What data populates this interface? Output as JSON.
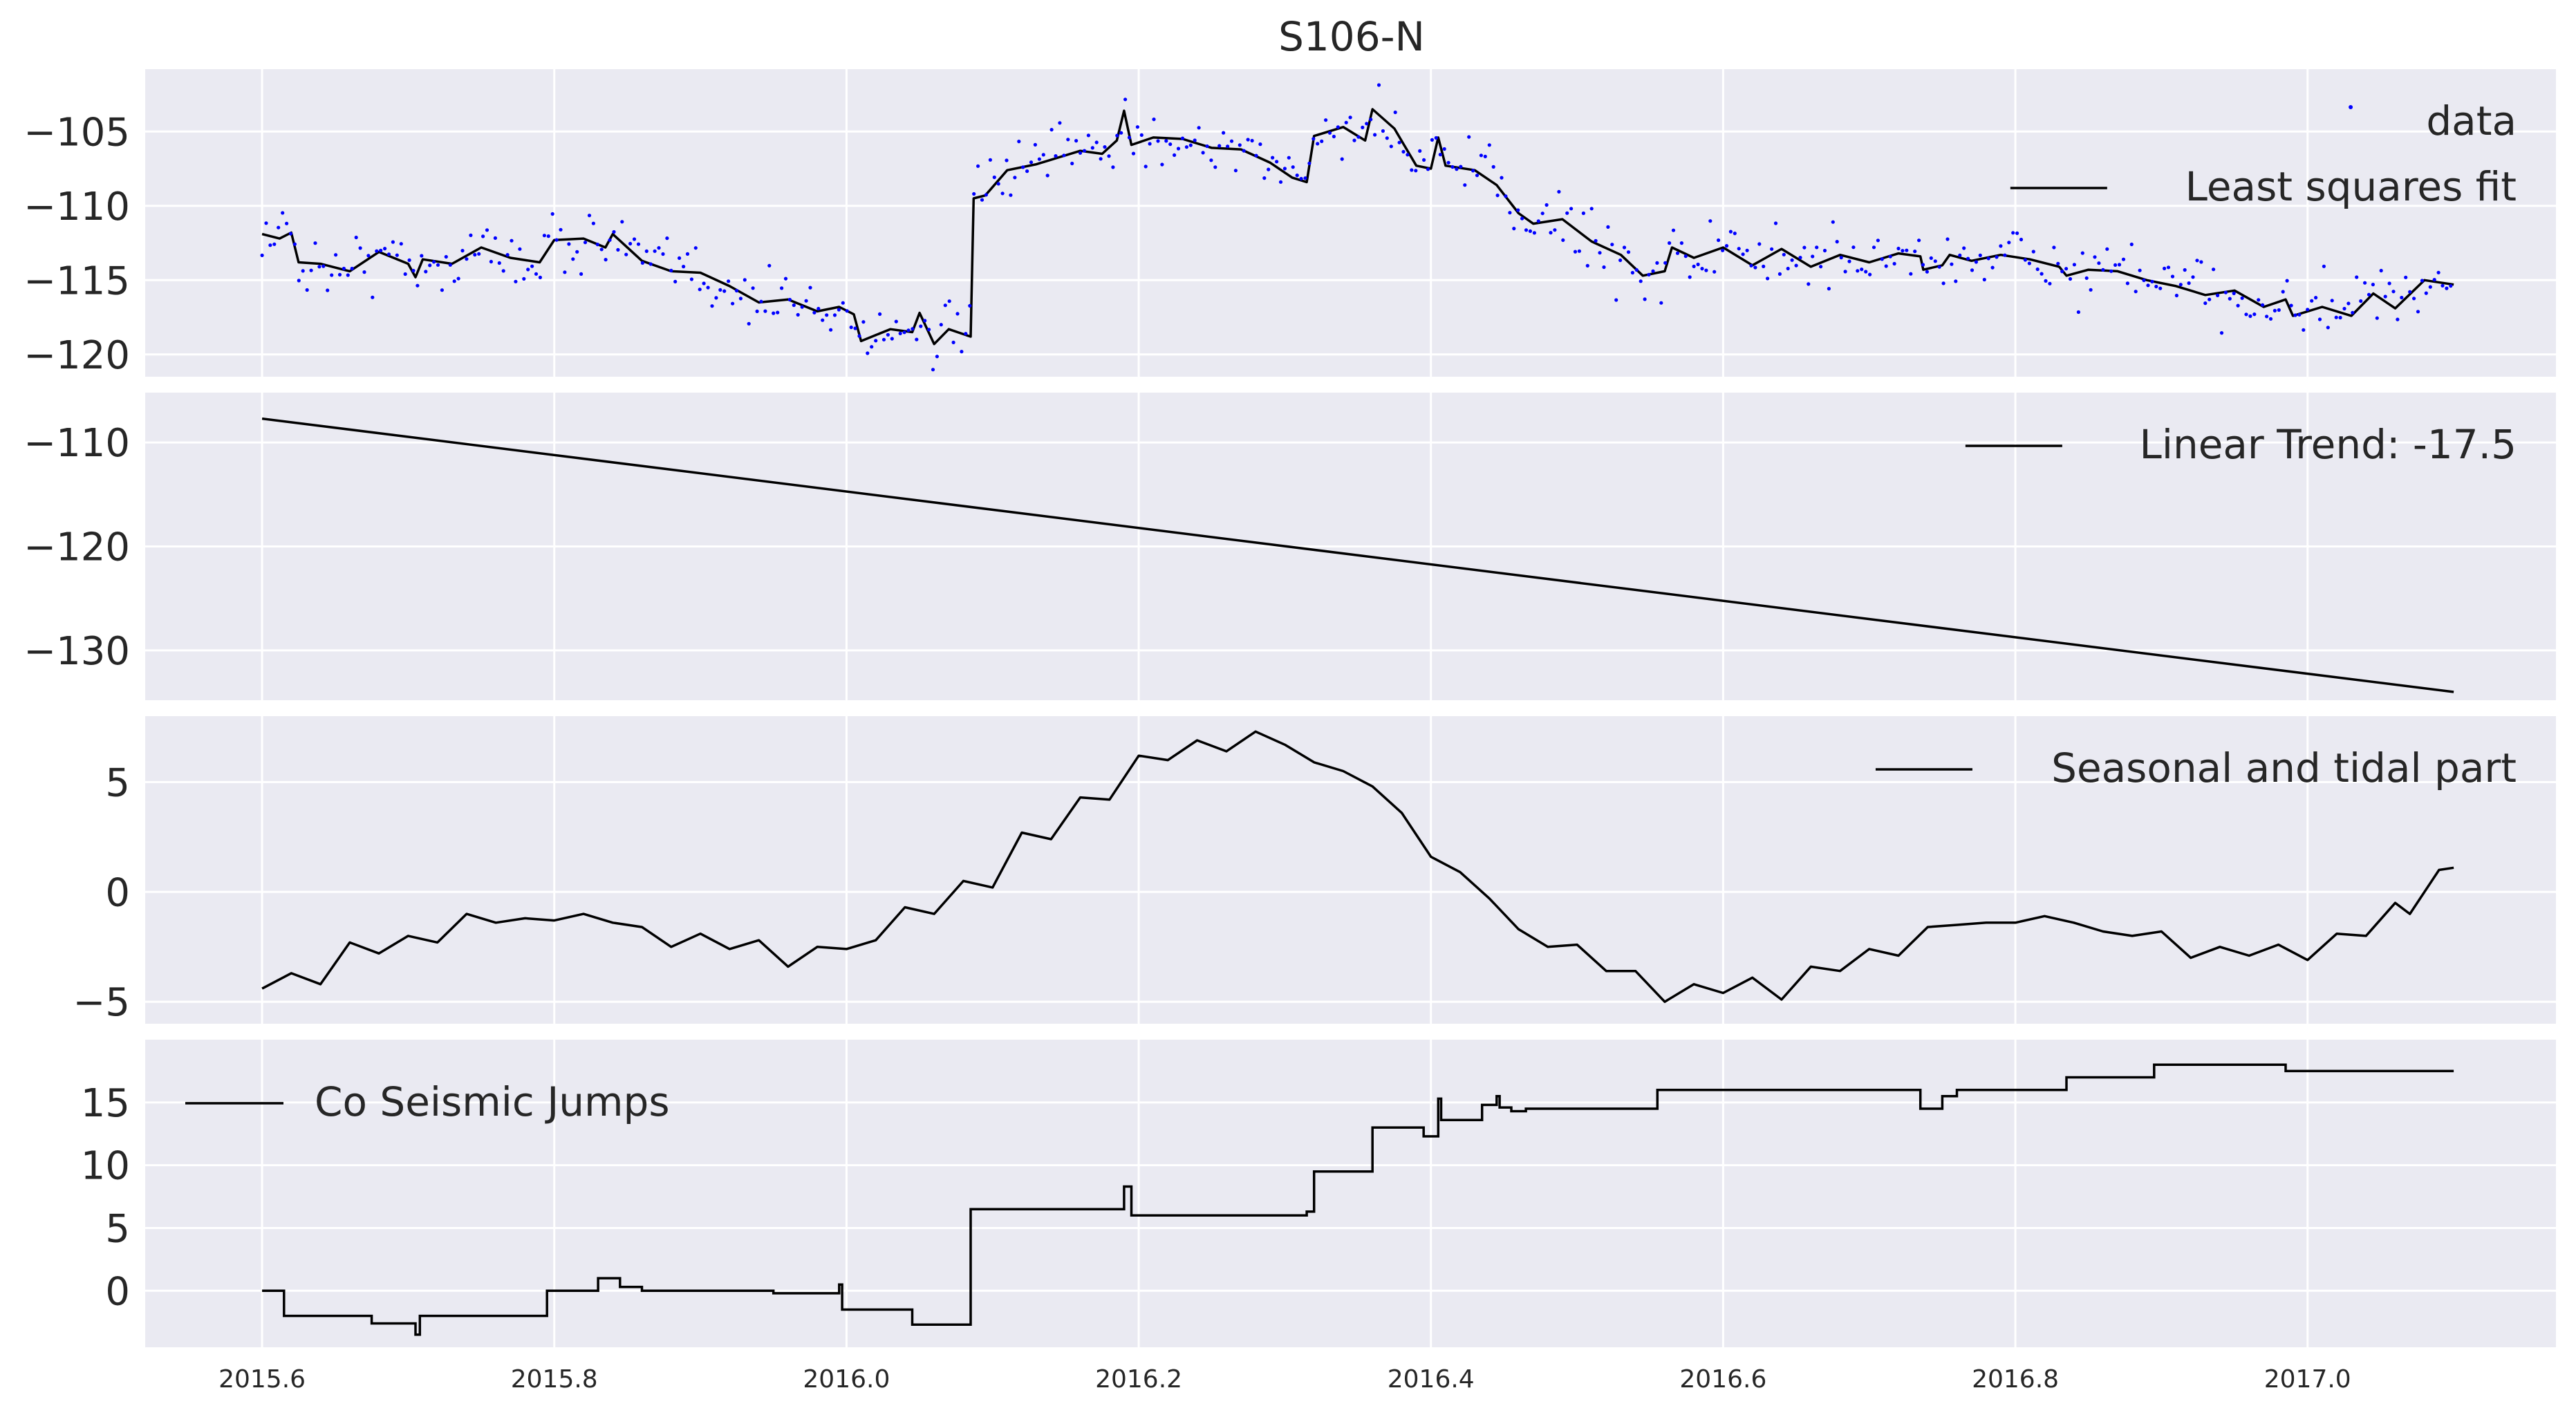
{
  "figure": {
    "title": "S106-N"
  },
  "x_axis": {
    "ticks": [
      2015.6,
      2015.8,
      2016.0,
      2016.2,
      2016.4,
      2016.6,
      2016.8,
      2017.0
    ],
    "range": [
      2015.52,
      2017.17
    ]
  },
  "chart_data": [
    {
      "type": "scatter+line",
      "name": "panel-1",
      "ylim": [
        -121.5,
        -100.8
      ],
      "yticks": [
        -120,
        -115,
        -110,
        -105
      ],
      "legend": {
        "placement": "top-right",
        "entries": [
          {
            "label": "data",
            "kind": "marker",
            "color": "#0000ff"
          },
          {
            "label": "Least squares fit",
            "kind": "line",
            "color": "#000000"
          }
        ]
      },
      "series": [
        {
          "name": "Least squares fit",
          "color": "#000000",
          "points": [
            [
              2015.6,
              -111.9
            ],
            [
              2015.612,
              -112.2
            ],
            [
              2015.62,
              -111.8
            ],
            [
              2015.625,
              -113.8
            ],
            [
              2015.64,
              -113.9
            ],
            [
              2015.66,
              -114.4
            ],
            [
              2015.68,
              -113.1
            ],
            [
              2015.7,
              -113.9
            ],
            [
              2015.705,
              -114.8
            ],
            [
              2015.71,
              -113.6
            ],
            [
              2015.73,
              -113.9
            ],
            [
              2015.75,
              -112.8
            ],
            [
              2015.77,
              -113.5
            ],
            [
              2015.79,
              -113.8
            ],
            [
              2015.8,
              -112.3
            ],
            [
              2015.82,
              -112.2
            ],
            [
              2015.835,
              -112.8
            ],
            [
              2015.84,
              -111.9
            ],
            [
              2015.86,
              -113.7
            ],
            [
              2015.88,
              -114.4
            ],
            [
              2015.9,
              -114.5
            ],
            [
              2015.92,
              -115.4
            ],
            [
              2015.94,
              -116.5
            ],
            [
              2015.96,
              -116.3
            ],
            [
              2015.98,
              -117.1
            ],
            [
              2015.995,
              -116.8
            ],
            [
              2016.005,
              -117.3
            ],
            [
              2016.01,
              -119.1
            ],
            [
              2016.03,
              -118.3
            ],
            [
              2016.045,
              -118.5
            ],
            [
              2016.05,
              -117.2
            ],
            [
              2016.06,
              -119.3
            ],
            [
              2016.07,
              -118.3
            ],
            [
              2016.085,
              -118.8
            ],
            [
              2016.087,
              -109.5
            ],
            [
              2016.095,
              -109.3
            ],
            [
              2016.11,
              -107.6
            ],
            [
              2016.13,
              -107.2
            ],
            [
              2016.16,
              -106.3
            ],
            [
              2016.175,
              -106.5
            ],
            [
              2016.185,
              -105.6
            ],
            [
              2016.19,
              -103.6
            ],
            [
              2016.195,
              -105.9
            ],
            [
              2016.21,
              -105.4
            ],
            [
              2016.23,
              -105.5
            ],
            [
              2016.25,
              -106.1
            ],
            [
              2016.27,
              -106.2
            ],
            [
              2016.29,
              -107.1
            ],
            [
              2016.305,
              -108.1
            ],
            [
              2016.315,
              -108.4
            ],
            [
              2016.32,
              -105.3
            ],
            [
              2016.34,
              -104.7
            ],
            [
              2016.355,
              -105.6
            ],
            [
              2016.36,
              -103.5
            ],
            [
              2016.375,
              -104.8
            ],
            [
              2016.39,
              -107.3
            ],
            [
              2016.4,
              -107.5
            ],
            [
              2016.405,
              -105.4
            ],
            [
              2016.41,
              -107.3
            ],
            [
              2016.43,
              -107.6
            ],
            [
              2016.445,
              -108.6
            ],
            [
              2016.46,
              -110.5
            ],
            [
              2016.47,
              -111.2
            ],
            [
              2016.49,
              -110.9
            ],
            [
              2016.51,
              -112.4
            ],
            [
              2016.53,
              -113.3
            ],
            [
              2016.545,
              -114.7
            ],
            [
              2016.56,
              -114.4
            ],
            [
              2016.565,
              -112.8
            ],
            [
              2016.58,
              -113.5
            ],
            [
              2016.6,
              -112.8
            ],
            [
              2016.62,
              -114.0
            ],
            [
              2016.64,
              -112.9
            ],
            [
              2016.66,
              -114.1
            ],
            [
              2016.68,
              -113.3
            ],
            [
              2016.7,
              -113.8
            ],
            [
              2016.72,
              -113.2
            ],
            [
              2016.735,
              -113.4
            ],
            [
              2016.737,
              -114.3
            ],
            [
              2016.75,
              -114.0
            ],
            [
              2016.755,
              -113.3
            ],
            [
              2016.77,
              -113.7
            ],
            [
              2016.79,
              -113.3
            ],
            [
              2016.81,
              -113.6
            ],
            [
              2016.83,
              -114.1
            ],
            [
              2016.835,
              -114.7
            ],
            [
              2016.85,
              -114.3
            ],
            [
              2016.87,
              -114.4
            ],
            [
              2016.89,
              -115.0
            ],
            [
              2016.91,
              -115.4
            ],
            [
              2016.93,
              -116.0
            ],
            [
              2016.95,
              -115.7
            ],
            [
              2016.97,
              -116.8
            ],
            [
              2016.985,
              -116.3
            ],
            [
              2016.99,
              -117.4
            ],
            [
              2017.01,
              -116.8
            ],
            [
              2017.03,
              -117.4
            ],
            [
              2017.045,
              -115.9
            ],
            [
              2017.06,
              -116.9
            ],
            [
              2017.08,
              -115.0
            ],
            [
              2017.1,
              -115.3
            ]
          ]
        },
        {
          "name": "data",
          "color": "#0000ff",
          "noise": 1.4
        }
      ]
    },
    {
      "type": "line",
      "name": "panel-2",
      "ylim": [
        -134.8,
        -105.2
      ],
      "yticks": [
        -130,
        -120,
        -110
      ],
      "legend": {
        "placement": "top-right",
        "entries": [
          {
            "label": "Linear Trend: -17.5",
            "kind": "line",
            "color": "#000000"
          }
        ]
      },
      "series": [
        {
          "name": "Linear Trend: -17.5",
          "color": "#000000",
          "points": [
            [
              2015.6,
              -107.7
            ],
            [
              2017.1,
              -134.0
            ]
          ]
        }
      ]
    },
    {
      "type": "line",
      "name": "panel-3",
      "ylim": [
        -6.0,
        8.0
      ],
      "yticks": [
        -5,
        0,
        5
      ],
      "legend": {
        "placement": "top-right",
        "entries": [
          {
            "label": "Seasonal and tidal part",
            "kind": "line",
            "color": "#000000"
          }
        ]
      },
      "series": [
        {
          "name": "Seasonal and tidal part",
          "color": "#000000",
          "points": [
            [
              2015.6,
              -4.4
            ],
            [
              2015.62,
              -3.7
            ],
            [
              2015.64,
              -4.2
            ],
            [
              2015.66,
              -2.3
            ],
            [
              2015.68,
              -2.8
            ],
            [
              2015.7,
              -2.0
            ],
            [
              2015.72,
              -2.3
            ],
            [
              2015.74,
              -1.0
            ],
            [
              2015.76,
              -1.4
            ],
            [
              2015.78,
              -1.2
            ],
            [
              2015.8,
              -1.3
            ],
            [
              2015.82,
              -1.0
            ],
            [
              2015.84,
              -1.4
            ],
            [
              2015.86,
              -1.6
            ],
            [
              2015.88,
              -2.5
            ],
            [
              2015.9,
              -1.9
            ],
            [
              2015.92,
              -2.6
            ],
            [
              2015.94,
              -2.2
            ],
            [
              2015.96,
              -3.4
            ],
            [
              2015.98,
              -2.5
            ],
            [
              2016.0,
              -2.6
            ],
            [
              2016.02,
              -2.2
            ],
            [
              2016.04,
              -0.7
            ],
            [
              2016.06,
              -1.0
            ],
            [
              2016.08,
              0.5
            ],
            [
              2016.1,
              0.2
            ],
            [
              2016.12,
              2.7
            ],
            [
              2016.14,
              2.4
            ],
            [
              2016.16,
              4.3
            ],
            [
              2016.18,
              4.2
            ],
            [
              2016.2,
              6.2
            ],
            [
              2016.22,
              6.0
            ],
            [
              2016.24,
              6.9
            ],
            [
              2016.26,
              6.4
            ],
            [
              2016.28,
              7.3
            ],
            [
              2016.3,
              6.7
            ],
            [
              2016.32,
              5.9
            ],
            [
              2016.34,
              5.5
            ],
            [
              2016.36,
              4.8
            ],
            [
              2016.38,
              3.6
            ],
            [
              2016.4,
              1.6
            ],
            [
              2016.42,
              0.9
            ],
            [
              2016.44,
              -0.3
            ],
            [
              2016.46,
              -1.7
            ],
            [
              2016.48,
              -2.5
            ],
            [
              2016.5,
              -2.4
            ],
            [
              2016.52,
              -3.6
            ],
            [
              2016.54,
              -3.6
            ],
            [
              2016.56,
              -5.0
            ],
            [
              2016.58,
              -4.2
            ],
            [
              2016.6,
              -4.6
            ],
            [
              2016.62,
              -3.9
            ],
            [
              2016.64,
              -4.9
            ],
            [
              2016.66,
              -3.4
            ],
            [
              2016.68,
              -3.6
            ],
            [
              2016.7,
              -2.6
            ],
            [
              2016.72,
              -2.9
            ],
            [
              2016.74,
              -1.6
            ],
            [
              2016.76,
              -1.5
            ],
            [
              2016.78,
              -1.4
            ],
            [
              2016.8,
              -1.4
            ],
            [
              2016.82,
              -1.1
            ],
            [
              2016.84,
              -1.4
            ],
            [
              2016.86,
              -1.8
            ],
            [
              2016.88,
              -2.0
            ],
            [
              2016.9,
              -1.8
            ],
            [
              2016.92,
              -3.0
            ],
            [
              2016.94,
              -2.5
            ],
            [
              2016.96,
              -2.9
            ],
            [
              2016.98,
              -2.4
            ],
            [
              2017.0,
              -3.1
            ],
            [
              2017.02,
              -1.9
            ],
            [
              2017.04,
              -2.0
            ],
            [
              2017.06,
              -0.5
            ],
            [
              2017.07,
              -1.0
            ],
            [
              2017.09,
              1.0
            ],
            [
              2017.1,
              1.1
            ]
          ]
        }
      ]
    },
    {
      "type": "line",
      "name": "panel-4",
      "ylim": [
        -4.5,
        20.0
      ],
      "yticks": [
        0,
        5,
        10,
        15
      ],
      "legend": {
        "placement": "top-left",
        "entries": [
          {
            "label": "Co Seismic Jumps",
            "kind": "line",
            "color": "#000000"
          }
        ]
      },
      "series": [
        {
          "name": "Co Seismic Jumps",
          "color": "#000000",
          "steps": [
            [
              2015.6,
              0.0
            ],
            [
              2015.615,
              -2.0
            ],
            [
              2015.675,
              -2.6
            ],
            [
              2015.705,
              -3.5
            ],
            [
              2015.708,
              -2.0
            ],
            [
              2015.795,
              0.0
            ],
            [
              2015.83,
              1.0
            ],
            [
              2015.845,
              0.3
            ],
            [
              2015.86,
              0.0
            ],
            [
              2015.95,
              -0.2
            ],
            [
              2015.995,
              0.5
            ],
            [
              2015.997,
              -1.5
            ],
            [
              2016.045,
              -2.7
            ],
            [
              2016.085,
              6.5
            ],
            [
              2016.19,
              8.3
            ],
            [
              2016.195,
              6.0
            ],
            [
              2016.315,
              6.3
            ],
            [
              2016.32,
              9.5
            ],
            [
              2016.36,
              13.0
            ],
            [
              2016.395,
              12.3
            ],
            [
              2016.405,
              15.3
            ],
            [
              2016.407,
              13.6
            ],
            [
              2016.435,
              14.8
            ],
            [
              2016.445,
              15.5
            ],
            [
              2016.447,
              14.6
            ],
            [
              2016.455,
              14.3
            ],
            [
              2016.465,
              14.5
            ],
            [
              2016.555,
              16.0
            ],
            [
              2016.735,
              14.5
            ],
            [
              2016.75,
              15.5
            ],
            [
              2016.76,
              16.0
            ],
            [
              2016.835,
              17.0
            ],
            [
              2016.895,
              18.0
            ],
            [
              2016.985,
              17.5
            ],
            [
              2017.1,
              17.5
            ]
          ]
        }
      ]
    }
  ]
}
